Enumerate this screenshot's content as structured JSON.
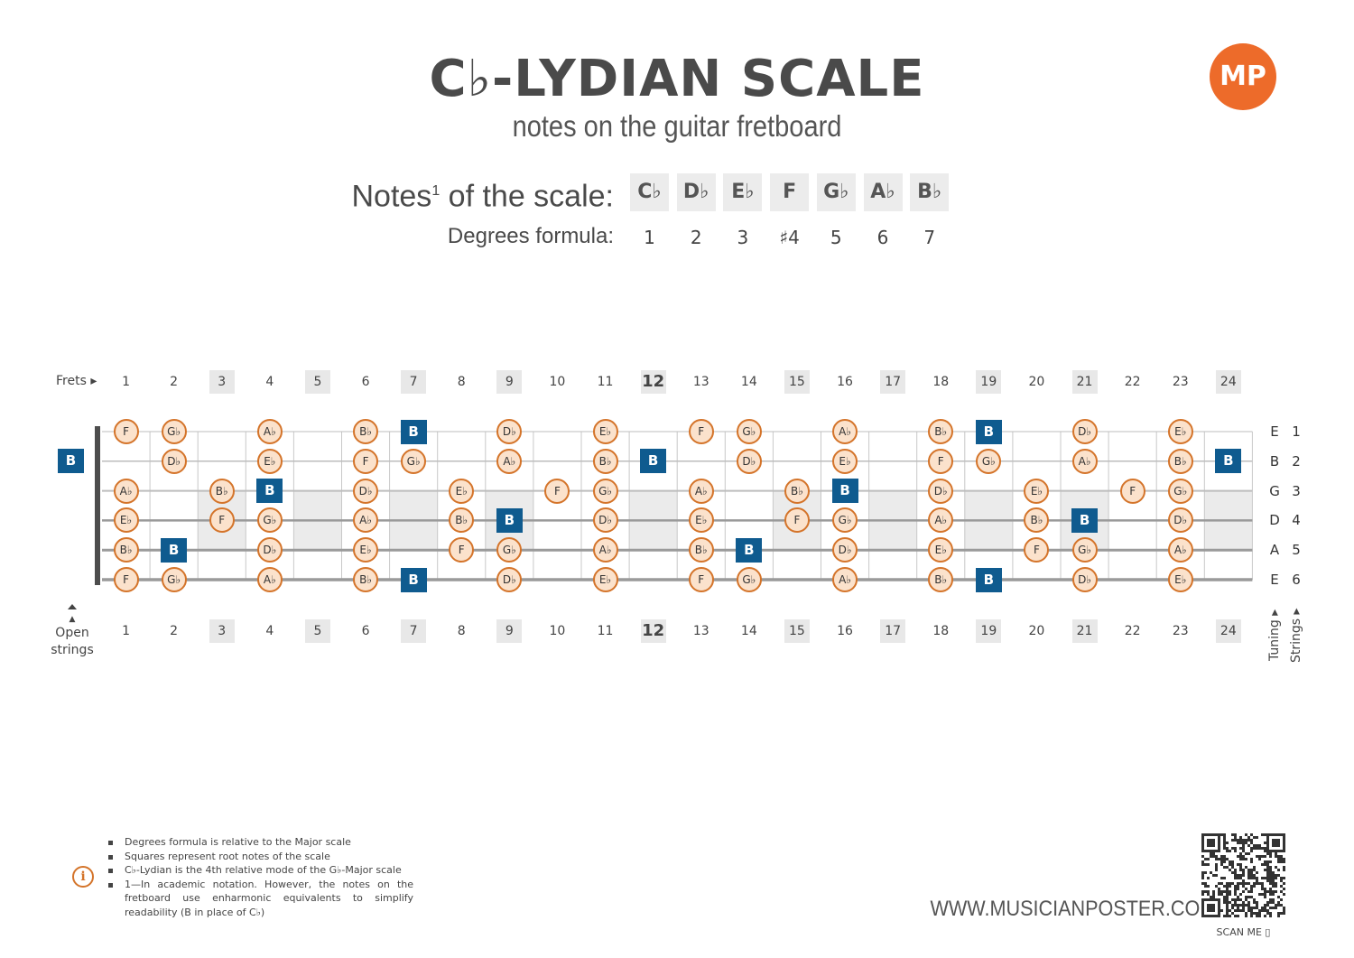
{
  "header": {
    "title": "C♭-LYDIAN SCALE",
    "subtitle": "notes on the guitar fretboard",
    "logo": "MP"
  },
  "scale": {
    "notes_label": "Notes",
    "notes_sup": "1",
    "notes_label_rest": " of the scale:",
    "notes": [
      "C♭",
      "D♭",
      "E♭",
      "F",
      "G♭",
      "A♭",
      "B♭"
    ],
    "degrees_label": "Degrees formula:",
    "degrees": [
      "1",
      "2",
      "3",
      "♯4",
      "5",
      "6",
      "7"
    ]
  },
  "fretboard": {
    "frets_label": "Frets ▸",
    "fret_numbers": [
      "1",
      "2",
      "3",
      "4",
      "5",
      "6",
      "7",
      "8",
      "9",
      "10",
      "11",
      "12",
      "13",
      "14",
      "15",
      "16",
      "17",
      "18",
      "19",
      "20",
      "21",
      "22",
      "23",
      "24"
    ],
    "shaded_frets": [
      3,
      5,
      7,
      9,
      12,
      15,
      17,
      19,
      21,
      24
    ],
    "open_strings_label_1": "▲",
    "open_strings_label_2": "Open",
    "open_strings_label_3": "strings",
    "tuning_label": "Tuning ▸",
    "strings_label": "Strings ▸",
    "strings": [
      {
        "number": "1",
        "tuning": "E",
        "open_note": "",
        "notes": [
          "F",
          "G♭",
          "",
          "A♭",
          "",
          "B♭",
          "B",
          "",
          "D♭",
          "",
          "E♭",
          "",
          "F",
          "G♭",
          "",
          "A♭",
          "",
          "B♭",
          "B",
          "",
          "D♭",
          "",
          "E♭",
          ""
        ]
      },
      {
        "number": "2",
        "tuning": "B",
        "open_note": "B",
        "notes": [
          "",
          "D♭",
          "",
          "E♭",
          "",
          "F",
          "G♭",
          "",
          "A♭",
          "",
          "B♭",
          "B",
          "",
          "D♭",
          "",
          "E♭",
          "",
          "F",
          "G♭",
          "",
          "A♭",
          "",
          "B♭",
          "B"
        ]
      },
      {
        "number": "3",
        "tuning": "G",
        "open_note": "",
        "notes": [
          "A♭",
          "",
          "B♭",
          "B",
          "",
          "D♭",
          "",
          "E♭",
          "",
          "F",
          "G♭",
          "",
          "A♭",
          "",
          "B♭",
          "B",
          "",
          "D♭",
          "",
          "E♭",
          "",
          "F",
          "G♭",
          ""
        ]
      },
      {
        "number": "4",
        "tuning": "D",
        "open_note": "",
        "notes": [
          "E♭",
          "",
          "F",
          "G♭",
          "",
          "A♭",
          "",
          "B♭",
          "B",
          "",
          "D♭",
          "",
          "E♭",
          "",
          "F",
          "G♭",
          "",
          "A♭",
          "",
          "B♭",
          "B",
          "",
          "D♭",
          ""
        ]
      },
      {
        "number": "5",
        "tuning": "A",
        "open_note": "",
        "notes": [
          "B♭",
          "B",
          "",
          "D♭",
          "",
          "E♭",
          "",
          "F",
          "G♭",
          "",
          "A♭",
          "",
          "B♭",
          "B",
          "",
          "D♭",
          "",
          "E♭",
          "",
          "F",
          "G♭",
          "",
          "A♭",
          ""
        ]
      },
      {
        "number": "6",
        "tuning": "E",
        "open_note": "",
        "notes": [
          "F",
          "G♭",
          "",
          "A♭",
          "",
          "B♭",
          "B",
          "",
          "D♭",
          "",
          "E♭",
          "",
          "F",
          "G♭",
          "",
          "A♭",
          "",
          "B♭",
          "B",
          "",
          "D♭",
          "",
          "E♭",
          ""
        ]
      }
    ],
    "root_note": "B"
  },
  "footnotes": [
    "Degrees formula is relative to the Major scale",
    "Squares represent root notes of the scale",
    "C♭-Lydian is the 4th relative mode of the G♭-Major scale",
    "1—In academic notation. However, the notes on the fretboard use enharmonic equivalents to simplify readability (B in place of C♭)"
  ],
  "footer": {
    "website": "WWW.MUSICIANPOSTER.COM",
    "scan_me": "SCAN ME ▯"
  },
  "colors": {
    "accent": "#ed6b2a",
    "root": "#0f5b8f",
    "note_fill": "#fbe2cc",
    "note_border": "#d4742a"
  },
  "icons": [
    "info-icon",
    "qr-code-icon",
    "phone-icon"
  ]
}
